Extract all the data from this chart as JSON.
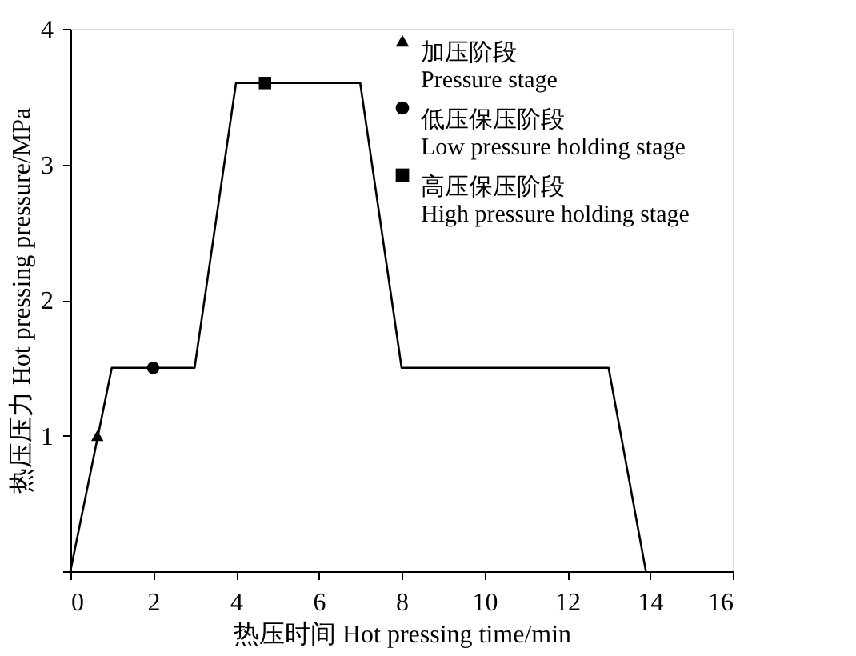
{
  "chart_data": {
    "type": "line",
    "xlabel": "热压时间 Hot pressing time/min",
    "ylabel": "热压压力 Hot pressing pressure/MPa",
    "xlim": [
      0,
      16
    ],
    "xticks": [
      0,
      2,
      4,
      6,
      8,
      10,
      12,
      14,
      16
    ],
    "ylim": [
      0,
      4
    ],
    "yticks": [
      {
        "value": 0,
        "label": null
      },
      1,
      2,
      3,
      4
    ],
    "grid": false,
    "legend": "top right",
    "series": [
      {
        "type": "line",
        "color": "#000000",
        "marker": "none",
        "line_style": "solid",
        "x": [
          0,
          1,
          3,
          4,
          7,
          8,
          13,
          13.9
        ],
        "values": [
          0,
          1.5,
          1.5,
          3.6,
          3.6,
          1.5,
          1.5,
          0
        ]
      },
      {
        "type": "scatter",
        "name": "加压阶段\nPressure stage",
        "color": "#000000",
        "marker": "triangle",
        "x": [
          0.65
        ],
        "values": [
          1.0
        ]
      },
      {
        "type": "scatter",
        "name": "低压保压阶段\nLow pressure holding stage",
        "color": "#000000",
        "marker": "circle",
        "x": [
          2
        ],
        "values": [
          1.5
        ]
      },
      {
        "type": "scatter",
        "name": "高压保压阶段\nHigh pressure holding stage",
        "color": "#000000",
        "marker": "square",
        "x": [
          4.7
        ],
        "values": [
          3.6
        ]
      }
    ]
  }
}
